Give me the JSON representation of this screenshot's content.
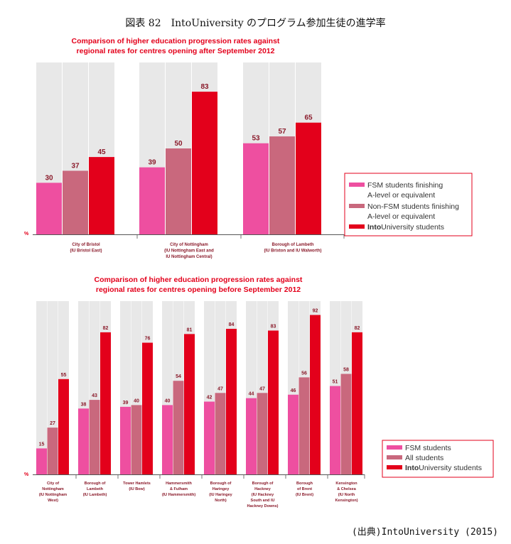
{
  "figure_title": "図表 82　IntoUniversity のプログラム参加生徒の進学率",
  "source": "(出典)IntoUniversity (2015)",
  "colors": {
    "fsm": "#ee4fa0",
    "nonfsm": "#c9687d",
    "iu": "#e3001b",
    "bg": "#e8e8e8",
    "title": "#e3001b",
    "axis": "#555555"
  },
  "chart_data": [
    {
      "type": "bar",
      "title": "Comparison of higher education progression rates against regional rates for centres opening after September 2012",
      "title_lines": [
        "Comparison of higher education progression rates against",
        "regional rates for centres opening after September 2012"
      ],
      "ylabel": "%",
      "ylim": [
        0,
        100
      ],
      "categories": [
        {
          "lines": [
            "City of Bristol",
            "(IU Bristol East)"
          ]
        },
        {
          "lines": [
            "City of Nottingham",
            "(IU Nottingham East and",
            "IU Nottingham Central)"
          ]
        },
        {
          "lines": [
            "Borough of Lambeth",
            "(IU Brixton and IU Walworth)"
          ]
        }
      ],
      "series": [
        {
          "name": "FSM students finishing A-level or equivalent",
          "color_key": "fsm",
          "values": [
            30,
            39,
            53
          ]
        },
        {
          "name": "Non-FSM students finishing A-level or equivalent",
          "color_key": "nonfsm",
          "values": [
            37,
            50,
            57
          ]
        },
        {
          "name": "IntoUniversity students",
          "color_key": "iu",
          "values": [
            45,
            83,
            65
          ]
        }
      ],
      "legend": [
        {
          "color_key": "fsm",
          "lines": [
            "FSM students finishing",
            "A-level or equivalent"
          ]
        },
        {
          "color_key": "nonfsm",
          "lines": [
            "Non-FSM students finishing",
            "A-level or equivalent"
          ]
        },
        {
          "color_key": "iu",
          "bold": "Into",
          "rest": "University students"
        }
      ]
    },
    {
      "type": "bar",
      "title": "Comparison of higher education progression rates against regional rates for centres opening before September 2012",
      "title_lines": [
        "Comparison of higher education progression rates against",
        "regional rates for centres opening before September 2012"
      ],
      "ylabel": "%",
      "ylim": [
        0,
        100
      ],
      "categories": [
        {
          "lines": [
            "City of",
            "Nottingham",
            "(IU Nottingham",
            "West)"
          ]
        },
        {
          "lines": [
            "Borough of",
            "Lambeth",
            "(IU Lambeth)"
          ]
        },
        {
          "lines": [
            "Tower Hamlets",
            "(IU Bow)"
          ]
        },
        {
          "lines": [
            "Hammersmith",
            "& Fulham",
            "(IU Hammersmith)"
          ]
        },
        {
          "lines": [
            "Borough of",
            "Haringey",
            "(IU Haringey",
            "North)"
          ]
        },
        {
          "lines": [
            "Borough of",
            "Hackney",
            "(IU Hackney",
            "South and IU",
            "Hackney Downs)"
          ]
        },
        {
          "lines": [
            "Borough",
            "of Brent",
            "(IU Brent)"
          ]
        },
        {
          "lines": [
            "Kensington",
            "& Chelsea",
            "(IU North",
            "Kensington)"
          ]
        }
      ],
      "series": [
        {
          "name": "FSM students",
          "color_key": "fsm",
          "values": [
            15,
            38,
            39,
            40,
            42,
            44,
            46,
            51
          ]
        },
        {
          "name": "All students",
          "color_key": "nonfsm",
          "values": [
            27,
            43,
            40,
            54,
            47,
            47,
            56,
            58
          ]
        },
        {
          "name": "IntoUniversity students",
          "color_key": "iu",
          "values": [
            55,
            82,
            76,
            81,
            84,
            83,
            92,
            82
          ]
        }
      ],
      "legend": [
        {
          "color_key": "fsm",
          "lines": [
            "FSM students"
          ]
        },
        {
          "color_key": "nonfsm",
          "lines": [
            "All students"
          ]
        },
        {
          "color_key": "iu",
          "bold": "Into",
          "rest": "University students"
        }
      ]
    }
  ]
}
